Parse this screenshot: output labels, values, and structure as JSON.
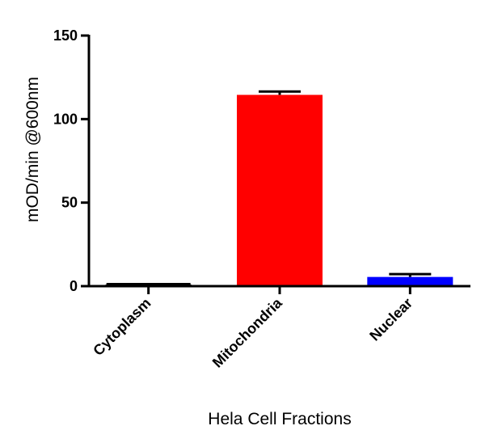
{
  "chart_data": {
    "type": "bar",
    "title": "",
    "xlabel": "Hela Cell Fractions",
    "ylabel": "mOD/min @600nm",
    "ylim": [
      0,
      150
    ],
    "yticks": [
      0,
      50,
      100,
      150
    ],
    "ytick_labels": [
      "0",
      "50",
      "100",
      "150"
    ],
    "categories": [
      "Cytoplasm",
      "Mitochondria",
      "Nuclear"
    ],
    "values": [
      1,
      114.5,
      5.5
    ],
    "error_upper": [
      1.2,
      116.5,
      7.2
    ],
    "colors": [
      "#000000",
      "#ff0000",
      "#0000ff"
    ],
    "grid": false,
    "legend": "none"
  }
}
